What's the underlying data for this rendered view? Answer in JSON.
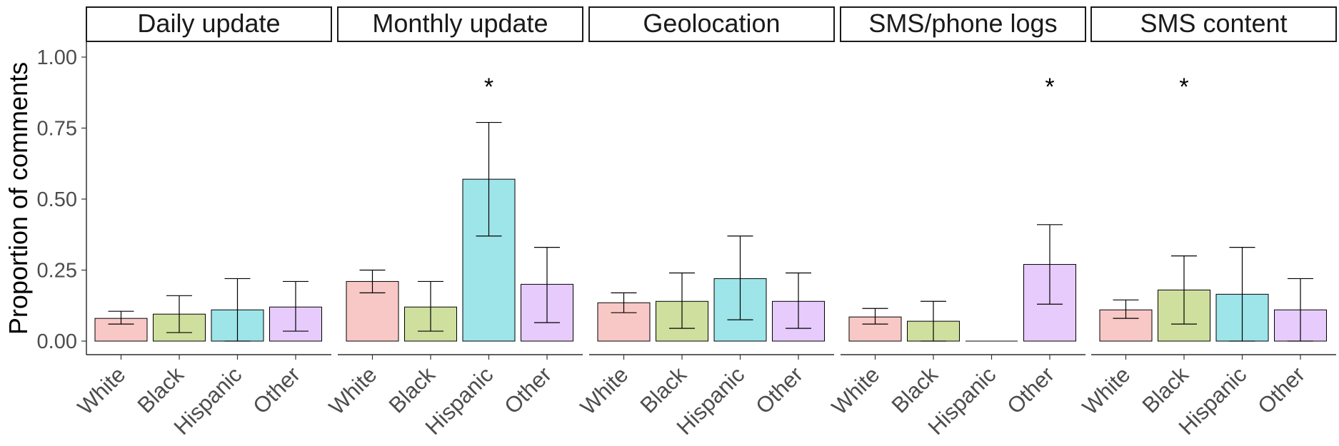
{
  "chart_data": {
    "type": "bar",
    "ylabel": "Proportion of comments",
    "ylim": [
      0,
      1.05
    ],
    "yticks": [
      "0.00",
      "0.25",
      "0.50",
      "0.75",
      "1.00"
    ],
    "categories": [
      "White",
      "Black",
      "Hispanic",
      "Other"
    ],
    "colors": [
      "#F8C8C6",
      "#CFDF9E",
      "#9DE5E9",
      "#E6CBFC"
    ],
    "significance_marker": "*",
    "grid": false,
    "legend": "none",
    "panels": [
      {
        "title": "Daily update",
        "values": [
          0.08,
          0.095,
          0.11,
          0.12
        ],
        "ci_low": [
          0.06,
          0.03,
          0.0,
          0.035
        ],
        "ci_high": [
          0.105,
          0.16,
          0.22,
          0.21
        ],
        "significant": [
          false,
          false,
          false,
          false
        ]
      },
      {
        "title": "Monthly update",
        "values": [
          0.21,
          0.12,
          0.57,
          0.2
        ],
        "ci_low": [
          0.17,
          0.035,
          0.37,
          0.065
        ],
        "ci_high": [
          0.25,
          0.21,
          0.77,
          0.33
        ],
        "significant": [
          false,
          false,
          true,
          false
        ]
      },
      {
        "title": "Geolocation",
        "values": [
          0.135,
          0.14,
          0.22,
          0.14
        ],
        "ci_low": [
          0.1,
          0.045,
          0.075,
          0.045
        ],
        "ci_high": [
          0.17,
          0.24,
          0.37,
          0.24
        ],
        "significant": [
          false,
          false,
          false,
          false
        ]
      },
      {
        "title": "SMS/phone logs",
        "values": [
          0.085,
          0.07,
          0.0,
          0.27
        ],
        "ci_low": [
          0.06,
          0.0,
          0.0,
          0.13
        ],
        "ci_high": [
          0.115,
          0.14,
          0.0,
          0.41
        ],
        "significant": [
          false,
          false,
          false,
          true
        ]
      },
      {
        "title": "SMS content",
        "values": [
          0.11,
          0.18,
          0.165,
          0.11
        ],
        "ci_low": [
          0.08,
          0.06,
          0.0,
          0.0
        ],
        "ci_high": [
          0.145,
          0.3,
          0.33,
          0.22
        ],
        "significant": [
          false,
          true,
          false,
          false
        ]
      }
    ]
  }
}
